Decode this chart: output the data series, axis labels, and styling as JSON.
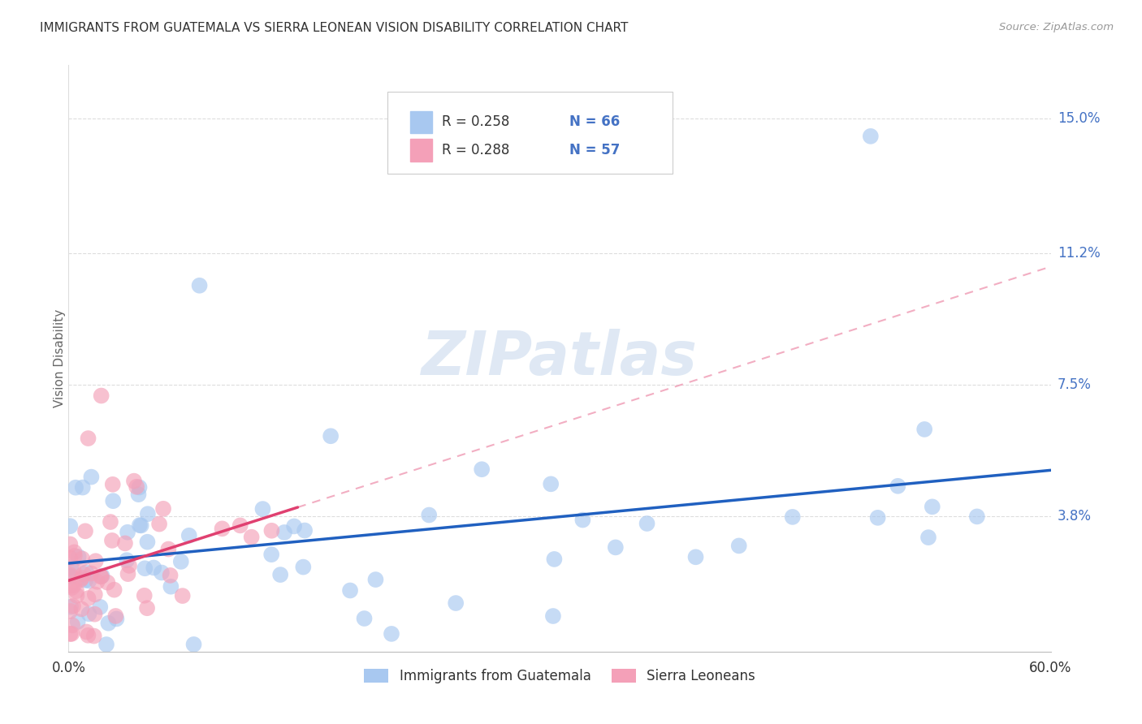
{
  "title": "IMMIGRANTS FROM GUATEMALA VS SIERRA LEONEAN VISION DISABILITY CORRELATION CHART",
  "source": "Source: ZipAtlas.com",
  "ylabel": "Vision Disability",
  "xlim": [
    0.0,
    0.6
  ],
  "ylim": [
    0.0,
    0.165
  ],
  "ytick_positions": [
    0.038,
    0.075,
    0.112,
    0.15
  ],
  "ytick_labels": [
    "3.8%",
    "7.5%",
    "11.2%",
    "15.0%"
  ],
  "R_blue": 0.258,
  "N_blue": 66,
  "R_pink": 0.288,
  "N_pink": 57,
  "blue_color": "#A8C8F0",
  "pink_color": "#F4A0B8",
  "blue_line_color": "#2060C0",
  "pink_line_color": "#E04070",
  "pink_dash_color": "#F0A0B8",
  "background": "#FFFFFF",
  "watermark": "ZIPatlas",
  "legend_label_blue": "Immigrants from Guatemala",
  "legend_label_pink": "Sierra Leoneans"
}
